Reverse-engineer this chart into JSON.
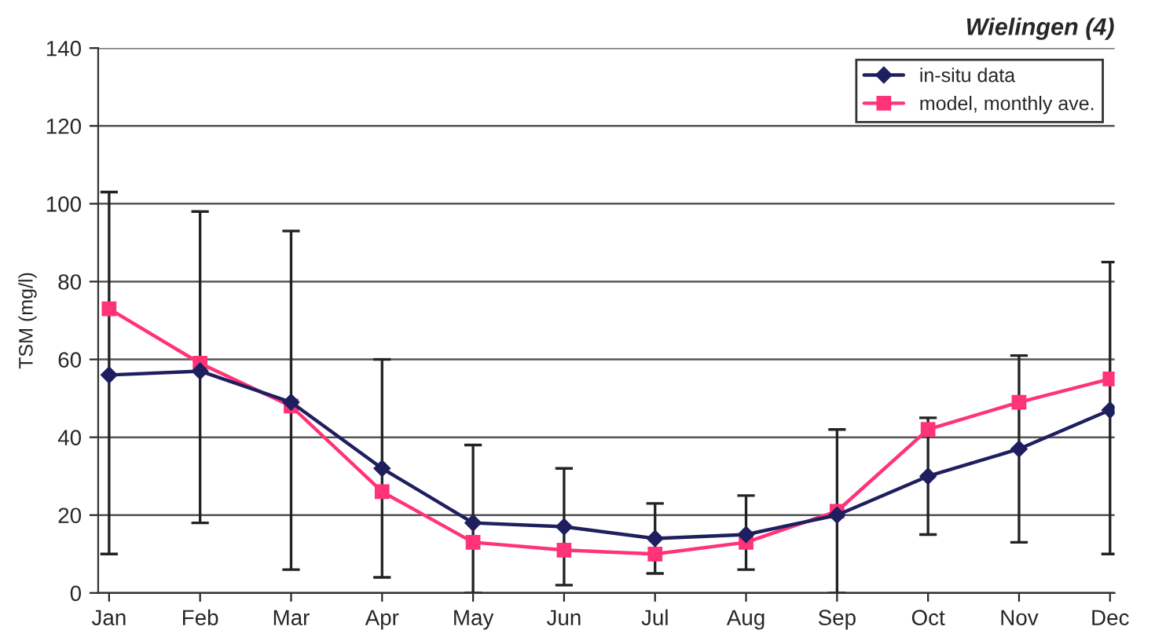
{
  "chart_data": {
    "type": "line",
    "title": "Wielingen (4)",
    "ylabel": "TSM (mg/l)",
    "categories": [
      "Jan",
      "Feb",
      "Mar",
      "Apr",
      "May",
      "Jun",
      "Jul",
      "Aug",
      "Sep",
      "Oct",
      "Nov",
      "Dec"
    ],
    "series": [
      {
        "name": "in-situ data",
        "color": "#1f1f5f",
        "marker": "diamond",
        "values": [
          56,
          57,
          49,
          32,
          18,
          17,
          14,
          15,
          20,
          30,
          37,
          47
        ],
        "errors": [
          [
            10,
            103
          ],
          [
            18,
            98
          ],
          [
            6,
            93
          ],
          [
            4,
            60
          ],
          [
            0,
            38
          ],
          [
            2,
            32
          ],
          [
            5,
            23
          ],
          [
            6,
            25
          ],
          [
            0,
            42
          ],
          [
            15,
            45
          ],
          [
            13,
            61
          ],
          [
            10,
            85
          ]
        ]
      },
      {
        "name": "model, monthly ave.",
        "color": "#ff3377",
        "marker": "square",
        "values": [
          73,
          59,
          48,
          26,
          13,
          11,
          10,
          13,
          21,
          42,
          49,
          55
        ]
      }
    ],
    "ylim": [
      0,
      140
    ],
    "yticks": [
      0,
      20,
      40,
      60,
      80,
      100,
      120,
      140
    ],
    "grid": "y",
    "legend": "top right",
    "line_style": "solid"
  }
}
